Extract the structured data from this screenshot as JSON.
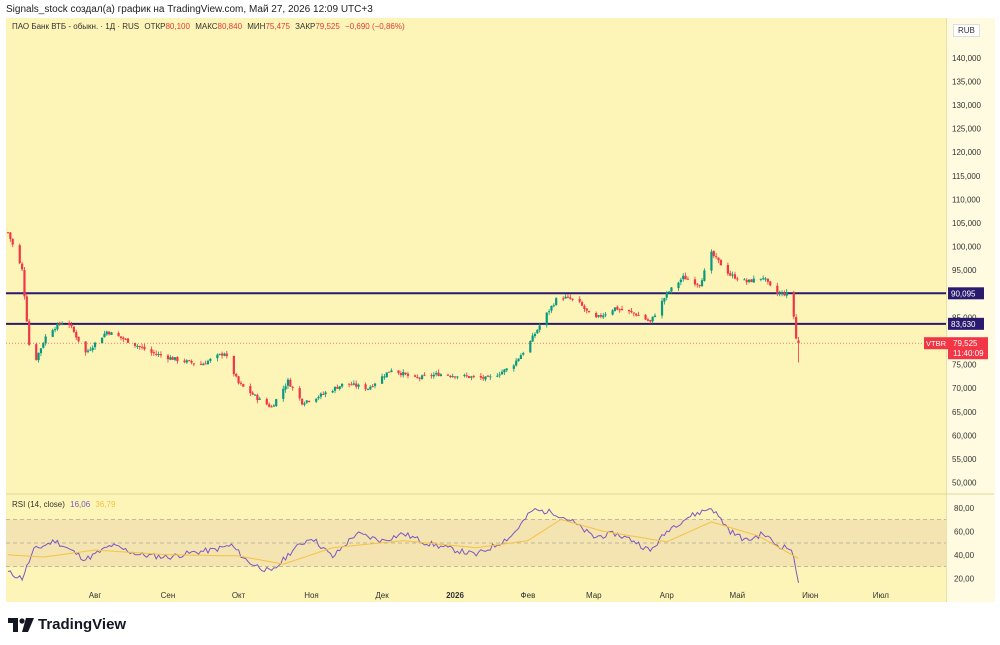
{
  "header": {
    "caption": "Signals_stock создал(а) график на TradingView.com, Май 27, 2026 12:09 UTC+3"
  },
  "legend": {
    "symbol": "ПАО Банк ВТБ - обыкн. · 1Д · RUS",
    "open_label": "ОТКР",
    "open": "80,100",
    "high_label": "МАКС",
    "high": "80,840",
    "low_label": "МИН",
    "low": "75,475",
    "close_label": "ЗАКР",
    "close": "79,525",
    "change": "−0,690 (−0,86%)"
  },
  "currency": "RUB",
  "price_tag": {
    "ticker": "VTBR",
    "price": "79,525",
    "countdown": "11:40:09"
  },
  "rsi_legend": {
    "label": "RSI (14, close)",
    "rsi": "16,06",
    "ma": "36,79"
  },
  "branding": {
    "name": "TradingView"
  },
  "colors": {
    "up": "#089981",
    "down": "#f23645",
    "level": "#2a1a6e",
    "rsi": "#7e57c2",
    "rsi_ma": "#f5c242",
    "background": "#fdf5b7"
  },
  "chart_data": [
    {
      "type": "candlestick",
      "ylim": [
        48000,
        148000
      ],
      "y_ticks": [
        "140,000",
        "135,000",
        "130,000",
        "125,000",
        "120,000",
        "115,000",
        "110,000",
        "105,000",
        "100,000",
        "95,000",
        "90,000",
        "85,000",
        "80,000",
        "75,000",
        "70,000",
        "65,000",
        "60,000",
        "55,000",
        "50,000"
      ],
      "y_tick_values": [
        140000,
        135000,
        130000,
        125000,
        120000,
        115000,
        110000,
        105000,
        100000,
        95000,
        90000,
        85000,
        80000,
        75000,
        70000,
        65000,
        60000,
        55000,
        50000
      ],
      "x_ticks": [
        "Авг",
        "Сен",
        "Окт",
        "Ноя",
        "Дек",
        "2026",
        "Фев",
        "Мар",
        "Апр",
        "Май",
        "Июн",
        "Июл"
      ],
      "horizontal_levels": [
        {
          "value": 90095,
          "label": "90,095"
        },
        {
          "value": 83630,
          "label": "83,630"
        }
      ],
      "price_anchors": [
        [
          "2025-06-25",
          103000
        ],
        [
          "2025-07-01",
          95000
        ],
        [
          "2025-07-05",
          74000
        ],
        [
          "2025-07-12",
          82000
        ],
        [
          "2025-07-20",
          84500
        ],
        [
          "2025-07-28",
          77500
        ],
        [
          "2025-08-06",
          82000
        ],
        [
          "2025-08-15",
          80000
        ],
        [
          "2025-08-25",
          77500
        ],
        [
          "2025-09-05",
          76000
        ],
        [
          "2025-09-15",
          75000
        ],
        [
          "2025-09-25",
          77500
        ],
        [
          "2025-10-01",
          71000
        ],
        [
          "2025-10-10",
          67500
        ],
        [
          "2025-10-15",
          66000
        ],
        [
          "2025-10-22",
          71500
        ],
        [
          "2025-10-28",
          67000
        ],
        [
          "2025-11-05",
          68500
        ],
        [
          "2025-11-15",
          71000
        ],
        [
          "2025-11-25",
          70000
        ],
        [
          "2025-12-05",
          74000
        ],
        [
          "2025-12-15",
          72000
        ],
        [
          "2025-12-25",
          73000
        ],
        [
          "2026-01-05",
          72500
        ],
        [
          "2026-01-15",
          72000
        ],
        [
          "2026-01-25",
          74500
        ],
        [
          "2026-02-01",
          79000
        ],
        [
          "2026-02-08",
          85000
        ],
        [
          "2026-02-14",
          89500
        ],
        [
          "2026-02-22",
          88500
        ],
        [
          "2026-03-01",
          84500
        ],
        [
          "2026-03-10",
          87000
        ],
        [
          "2026-03-20",
          85500
        ],
        [
          "2026-03-25",
          84000
        ],
        [
          "2026-04-01",
          90000
        ],
        [
          "2026-04-08",
          93500
        ],
        [
          "2026-04-15",
          92000
        ],
        [
          "2026-04-20",
          98500
        ],
        [
          "2026-04-28",
          94000
        ],
        [
          "2026-05-05",
          92500
        ],
        [
          "2026-05-12",
          93500
        ],
        [
          "2026-05-17",
          90000
        ],
        [
          "2026-05-24",
          90000
        ],
        [
          "2026-05-26",
          80500
        ],
        [
          "2026-05-27",
          79525
        ]
      ],
      "last": {
        "open": 80100,
        "high": 80840,
        "low": 75475,
        "close": 79525
      }
    },
    {
      "type": "line",
      "title": "RSI (14, close)",
      "ylim": [
        10,
        90
      ],
      "y_ticks": [
        "80,00",
        "60,00",
        "40,00",
        "20,00"
      ],
      "y_tick_values": [
        80,
        60,
        40,
        20
      ],
      "bands": [
        70,
        50,
        30
      ],
      "rsi_anchors": [
        [
          "2025-06-25",
          25
        ],
        [
          "2025-07-01",
          20
        ],
        [
          "2025-07-06",
          44
        ],
        [
          "2025-07-15",
          52
        ],
        [
          "2025-07-28",
          36
        ],
        [
          "2025-08-08",
          48
        ],
        [
          "2025-08-20",
          40
        ],
        [
          "2025-09-01",
          38
        ],
        [
          "2025-09-12",
          42
        ],
        [
          "2025-09-20",
          44
        ],
        [
          "2025-09-28",
          48
        ],
        [
          "2025-10-05",
          34
        ],
        [
          "2025-10-15",
          25
        ],
        [
          "2025-10-24",
          44
        ],
        [
          "2025-11-01",
          55
        ],
        [
          "2025-11-10",
          38
        ],
        [
          "2025-11-20",
          58
        ],
        [
          "2025-12-01",
          52
        ],
        [
          "2025-12-10",
          58
        ],
        [
          "2025-12-20",
          50
        ],
        [
          "2026-01-01",
          44
        ],
        [
          "2026-01-10",
          40
        ],
        [
          "2026-01-18",
          48
        ],
        [
          "2026-01-25",
          56
        ],
        [
          "2026-02-03",
          78
        ],
        [
          "2026-02-12",
          76
        ],
        [
          "2026-02-20",
          68
        ],
        [
          "2026-03-01",
          55
        ],
        [
          "2026-03-10",
          58
        ],
        [
          "2026-03-18",
          52
        ],
        [
          "2026-03-25",
          43
        ],
        [
          "2026-04-02",
          62
        ],
        [
          "2026-04-10",
          72
        ],
        [
          "2026-04-20",
          80
        ],
        [
          "2026-04-28",
          60
        ],
        [
          "2026-05-05",
          52
        ],
        [
          "2026-05-12",
          58
        ],
        [
          "2026-05-18",
          48
        ],
        [
          "2026-05-24",
          45
        ],
        [
          "2026-05-27",
          16.06
        ]
      ],
      "ma_anchors": [
        [
          "2025-06-25",
          40
        ],
        [
          "2025-07-10",
          38
        ],
        [
          "2025-08-01",
          44
        ],
        [
          "2025-09-01",
          40
        ],
        [
          "2025-10-01",
          39
        ],
        [
          "2025-10-20",
          32
        ],
        [
          "2025-11-10",
          46
        ],
        [
          "2025-12-10",
          52
        ],
        [
          "2026-01-10",
          46
        ],
        [
          "2026-02-01",
          52
        ],
        [
          "2026-02-15",
          70
        ],
        [
          "2026-03-05",
          60
        ],
        [
          "2026-04-01",
          51
        ],
        [
          "2026-04-20",
          68
        ],
        [
          "2026-05-10",
          56
        ],
        [
          "2026-05-27",
          36.79
        ]
      ]
    }
  ]
}
